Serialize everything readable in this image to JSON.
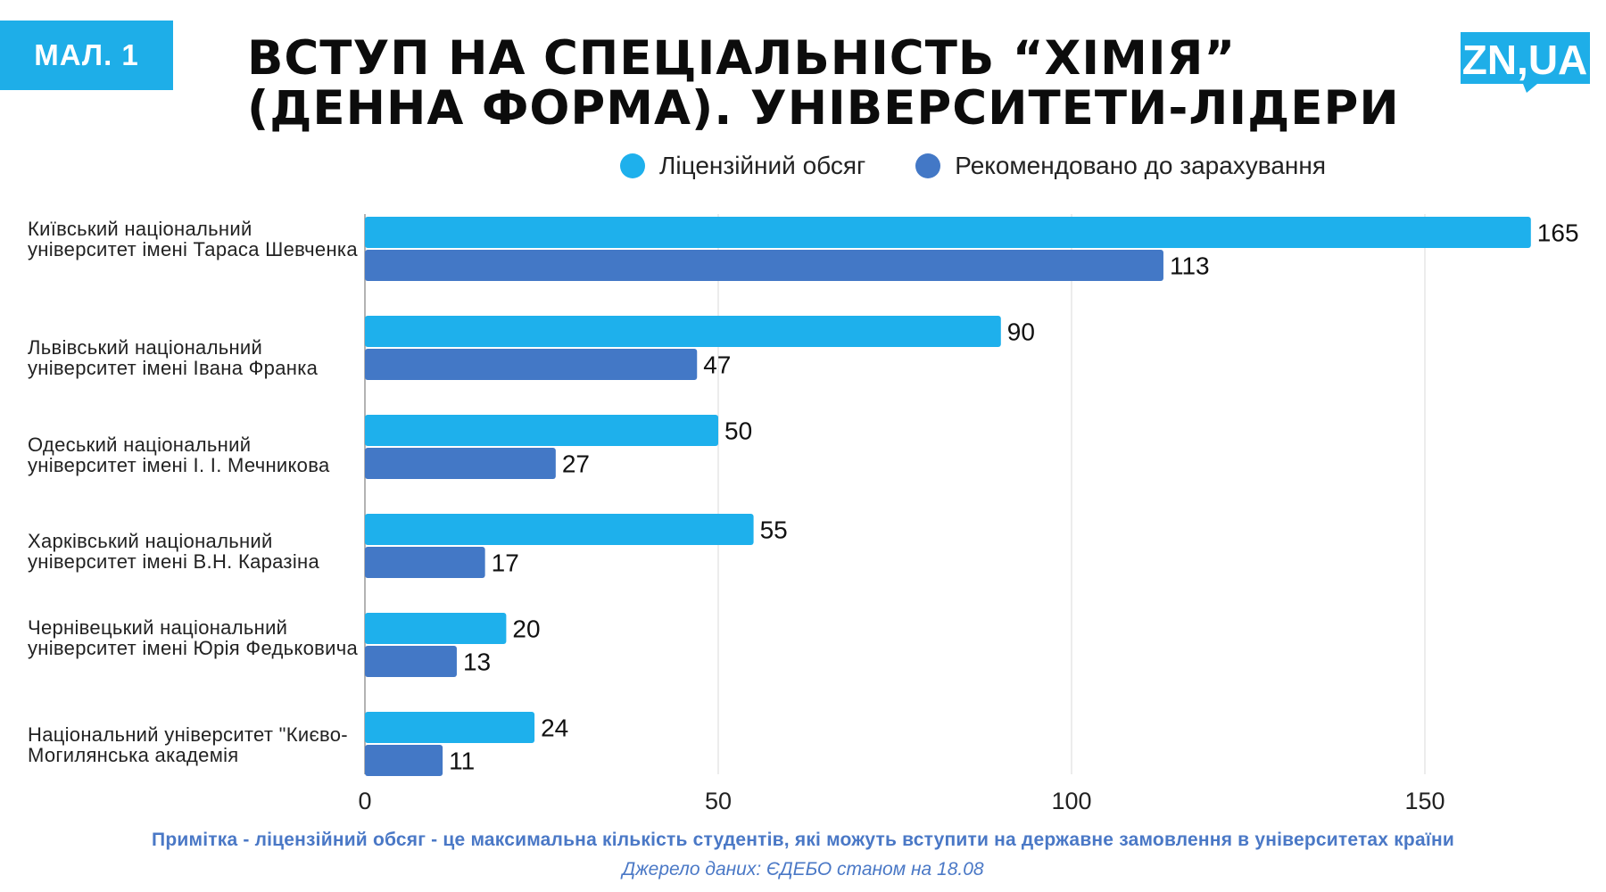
{
  "header": {
    "figure_badge": "МАЛ. 1",
    "title": "ВСТУП НА СПЕЦІАЛЬНІСТЬ “ХІМІЯ” (ДЕННА ФОРМА). УНІВЕРСИТЕТИ-ЛІДЕРИ",
    "logo_text": "ZN,UA"
  },
  "colors": {
    "accent": "#1eaee8",
    "series_license": "#1eb0ec",
    "series_recommended": "#4378c6",
    "note_text": "#4a78c6",
    "grid": "#d9d9d9"
  },
  "chart_data": {
    "type": "bar",
    "orientation": "horizontal",
    "title": "ВСТУП НА СПЕЦІАЛЬНІСТЬ “ХІМІЯ” (ДЕННА ФОРМА). УНІВЕРСИТЕТИ-ЛІДЕРИ",
    "categories": [
      "Київський національний університет імені Тараса Шевченка",
      "Львівський національний університет імені Івана Франка",
      "Одеський національний університет імені І. І. Мечникова",
      "Харківський національний університет імені В.Н. Каразіна",
      "Чернівецький національний університет імені Юрія Федьковича",
      "Національний університет \"Києво-Могилянська академія"
    ],
    "series": [
      {
        "name": "Ліцензійний обсяг",
        "values": [
          165,
          90,
          50,
          55,
          20,
          24
        ]
      },
      {
        "name": "Рекомендовано до зарахування",
        "values": [
          113,
          47,
          27,
          17,
          13,
          11
        ]
      }
    ],
    "xlim": [
      0,
      170
    ],
    "xticks": [
      0,
      50,
      100,
      150
    ],
    "grid": true,
    "legend_position": "top"
  },
  "footer": {
    "note": "Примітка - ліцензійний обсяг - це максимальна кількість студентів, які можуть вступити на державне замовлення в університетах країни",
    "source": "Джерело даних: ЄДЕБО станом на 18.08"
  }
}
